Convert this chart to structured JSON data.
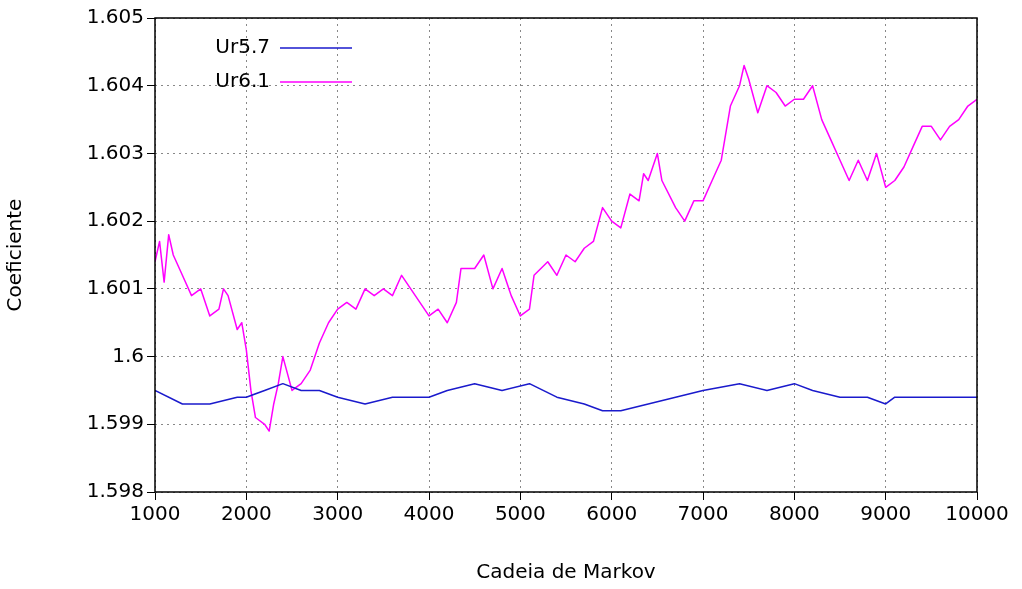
{
  "chart_data": {
    "type": "line",
    "xlabel": "Cadeia de Markov",
    "ylabel": "Coeficiente",
    "xlim": [
      1000,
      10000
    ],
    "xticks": [
      1000,
      2000,
      3000,
      4000,
      5000,
      6000,
      7000,
      8000,
      9000,
      10000
    ],
    "ylim": [
      1.598,
      1.605
    ],
    "yticks": [
      1.598,
      1.599,
      1.6,
      1.601,
      1.602,
      1.603,
      1.604,
      1.605
    ],
    "grid": true,
    "legend": "top left",
    "marker": "none",
    "line_style": "solid",
    "series": [
      {
        "name": "Ur5.7",
        "color": "#1a1acc",
        "x": [
          1000,
          1300,
          1600,
          1900,
          2000,
          2200,
          2400,
          2600,
          2800,
          3000,
          3300,
          3600,
          4000,
          4200,
          4500,
          4800,
          5100,
          5400,
          5700,
          5900,
          6100,
          6400,
          6700,
          7000,
          7400,
          7700,
          8000,
          8200,
          8500,
          8800,
          9000,
          9100,
          9500,
          9800,
          10000
        ],
        "values": [
          1.5995,
          1.5993,
          1.5993,
          1.5994,
          1.5994,
          1.5995,
          1.5996,
          1.5995,
          1.5995,
          1.5994,
          1.5993,
          1.5994,
          1.5994,
          1.5995,
          1.5996,
          1.5995,
          1.5996,
          1.5994,
          1.5993,
          1.5992,
          1.5992,
          1.5993,
          1.5994,
          1.5995,
          1.5996,
          1.5995,
          1.5996,
          1.5995,
          1.5994,
          1.5994,
          1.5993,
          1.5994,
          1.5994,
          1.5994,
          1.5994
        ]
      },
      {
        "name": "Ur6.1",
        "color": "#ff00ff",
        "x": [
          1000,
          1050,
          1100,
          1150,
          1200,
          1300,
          1400,
          1500,
          1600,
          1700,
          1750,
          1800,
          1900,
          1950,
          2000,
          2050,
          2100,
          2200,
          2250,
          2300,
          2350,
          2400,
          2500,
          2600,
          2700,
          2800,
          2900,
          3000,
          3100,
          3200,
          3300,
          3400,
          3500,
          3600,
          3700,
          3800,
          3900,
          4000,
          4100,
          4200,
          4300,
          4350,
          4500,
          4600,
          4700,
          4800,
          4900,
          5000,
          5100,
          5150,
          5300,
          5400,
          5500,
          5600,
          5700,
          5800,
          5900,
          6000,
          6100,
          6200,
          6300,
          6350,
          6400,
          6500,
          6550,
          6700,
          6800,
          6900,
          7000,
          7100,
          7200,
          7300,
          7400,
          7450,
          7500,
          7600,
          7700,
          7800,
          7900,
          8000,
          8100,
          8200,
          8300,
          8400,
          8500,
          8600,
          8700,
          8800,
          8900,
          9000,
          9100,
          9200,
          9300,
          9400,
          9500,
          9600,
          9700,
          9800,
          9900,
          10000
        ],
        "values": [
          1.6014,
          1.6017,
          1.6011,
          1.6018,
          1.6015,
          1.6012,
          1.6009,
          1.601,
          1.6006,
          1.6007,
          1.601,
          1.6009,
          1.6004,
          1.6005,
          1.6001,
          1.5995,
          1.5991,
          1.599,
          1.5989,
          1.5993,
          1.5996,
          1.6,
          1.5995,
          1.5996,
          1.5998,
          1.6002,
          1.6005,
          1.6007,
          1.6008,
          1.6007,
          1.601,
          1.6009,
          1.601,
          1.6009,
          1.6012,
          1.601,
          1.6008,
          1.6006,
          1.6007,
          1.6005,
          1.6008,
          1.6013,
          1.6013,
          1.6015,
          1.601,
          1.6013,
          1.6009,
          1.6006,
          1.6007,
          1.6012,
          1.6014,
          1.6012,
          1.6015,
          1.6014,
          1.6016,
          1.6017,
          1.6022,
          1.602,
          1.6019,
          1.6024,
          1.6023,
          1.6027,
          1.6026,
          1.603,
          1.6026,
          1.6022,
          1.602,
          1.6023,
          1.6023,
          1.6026,
          1.6029,
          1.6037,
          1.604,
          1.6043,
          1.6041,
          1.6036,
          1.604,
          1.6039,
          1.6037,
          1.6038,
          1.6038,
          1.604,
          1.6035,
          1.6032,
          1.6029,
          1.6026,
          1.6029,
          1.6026,
          1.603,
          1.6025,
          1.6026,
          1.6028,
          1.6031,
          1.6034,
          1.6034,
          1.6032,
          1.6034,
          1.6035,
          1.6037,
          1.6038
        ]
      }
    ]
  }
}
